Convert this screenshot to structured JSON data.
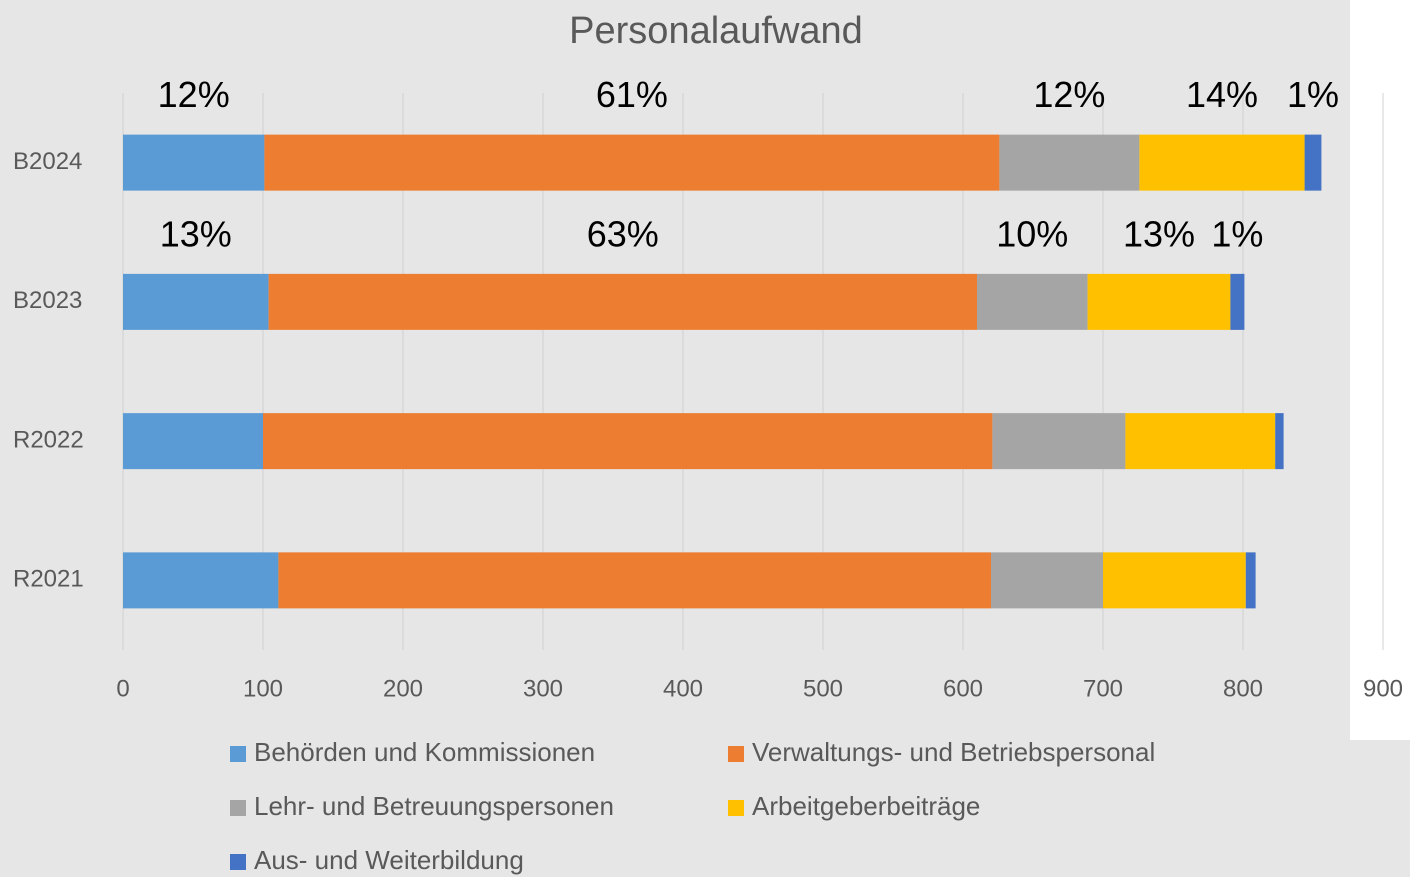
{
  "chart_data": {
    "type": "stacked-barh",
    "title": "Personalaufwand",
    "categories": [
      "B2024",
      "B2023",
      "R2022",
      "R2021"
    ],
    "series": [
      {
        "name": "Behörden und Kommissionen",
        "color": "#5b9bd5",
        "values": [
          101,
          104,
          100,
          111
        ],
        "value_labels": [
          "12%",
          "13%",
          null,
          null
        ]
      },
      {
        "name": "Verwaltungs- und Betriebspersonal",
        "color": "#ed7d31",
        "values": [
          525,
          506,
          521,
          509
        ],
        "value_labels": [
          "61%",
          "63%",
          null,
          null
        ]
      },
      {
        "name": "Lehr- und Betreuungspersonen",
        "color": "#a5a5a5",
        "values": [
          100,
          79,
          95,
          80
        ],
        "value_labels": [
          "12%",
          "10%",
          null,
          null
        ]
      },
      {
        "name": "Arbeitgeberbeiträge",
        "color": "#ffc000",
        "values": [
          118,
          102,
          107,
          102
        ],
        "value_labels": [
          "14%",
          "13%",
          null,
          null
        ]
      },
      {
        "name": "Aus- und Weiterbildung",
        "color": "#4472c4",
        "values": [
          12,
          10,
          6,
          7
        ],
        "value_labels": [
          "1%",
          "1%",
          null,
          null
        ]
      }
    ],
    "xlim": [
      0,
      900
    ],
    "xticks": [
      0,
      100,
      200,
      300,
      400,
      500,
      600,
      700,
      800,
      900
    ],
    "grid": true
  }
}
